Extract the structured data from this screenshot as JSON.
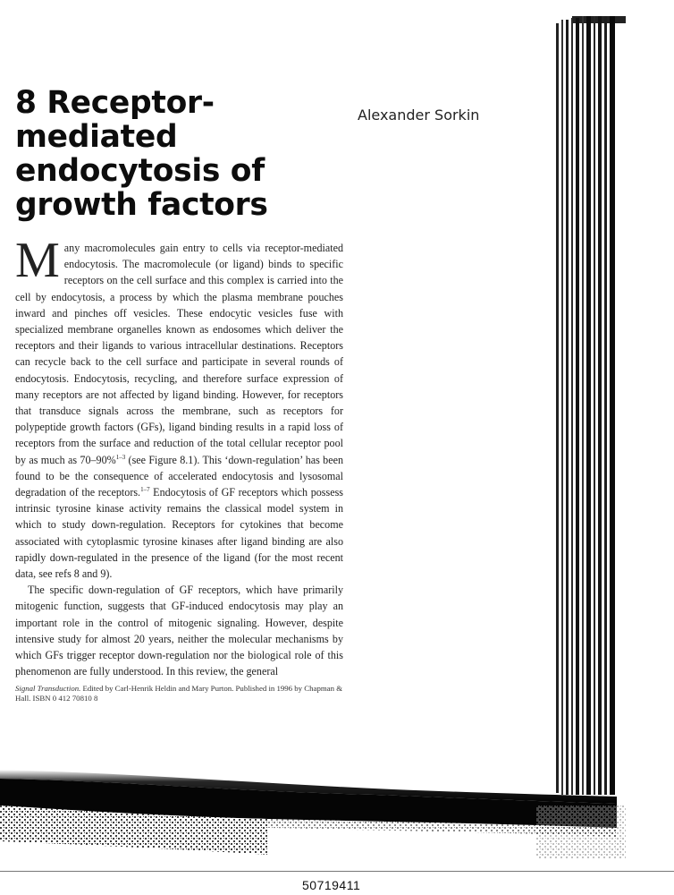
{
  "chapter": {
    "title_lines": [
      "8 Receptor-mediated",
      "endocytosis of",
      "growth factors"
    ],
    "author": "Alexander Sorkin"
  },
  "body": {
    "dropcap": "M",
    "p1": "any macromolecules gain entry to cells via receptor-mediated endocytosis. The macromolecule (or ligand) binds to specific receptors on the cell surface and this complex is carried into the cell by endocytosis, a process by which the plasma membrane pouches inward and pinches off vesicles. These endocytic vesicles fuse with specialized membrane organelles known as endosomes which deliver the receptors and their ligands to various intracellular destinations. Receptors can recycle back to the cell surface and participate in several rounds of endocytosis. Endocytosis, recycling, and therefore surface expression of many receptors are not affected by ligand binding. However, for receptors that transduce signals across the membrane, such as receptors for polypeptide growth factors (GFs), ligand binding results in a rapid loss of receptors from the surface and reduction of the total cellular receptor pool by as much as 70–90%",
    "p1_sup1": "1–3",
    "p1b": " (see Figure 8.1). This ‘down-regulation’ has been found to be the consequence of accelerated endocytosis and lysosomal degradation of the receptors.",
    "p1_sup2": "1–7",
    "p1c": " Endocytosis of GF receptors which possess intrinsic tyrosine kinase activity remains the classical model system in which to study down-regulation. Receptors for cytokines that become associated with cytoplasmic tyrosine kinases after ligand binding are also rapidly down-regulated in the presence of the ligand (for the most recent data, see refs 8 and 9).",
    "p2": "The specific down-regulation of GF receptors, which have primarily mitogenic function, suggests that GF-induced endocytosis may play an important role in the control of mitogenic signaling. However, despite intensive study for almost 20 years, neither the molecular mechanisms by which GFs trigger receptor down-regulation nor the biological role of this phenomenon are fully understood. In this review, the general"
  },
  "footnote": {
    "book_title": "Signal Transduction.",
    "text": " Edited by Carl-Henrik Heldin and Mary Purton. Published in 1996 by Chapman & Hall. ISBN 0 412 70810 8"
  },
  "document_id": "50719411"
}
